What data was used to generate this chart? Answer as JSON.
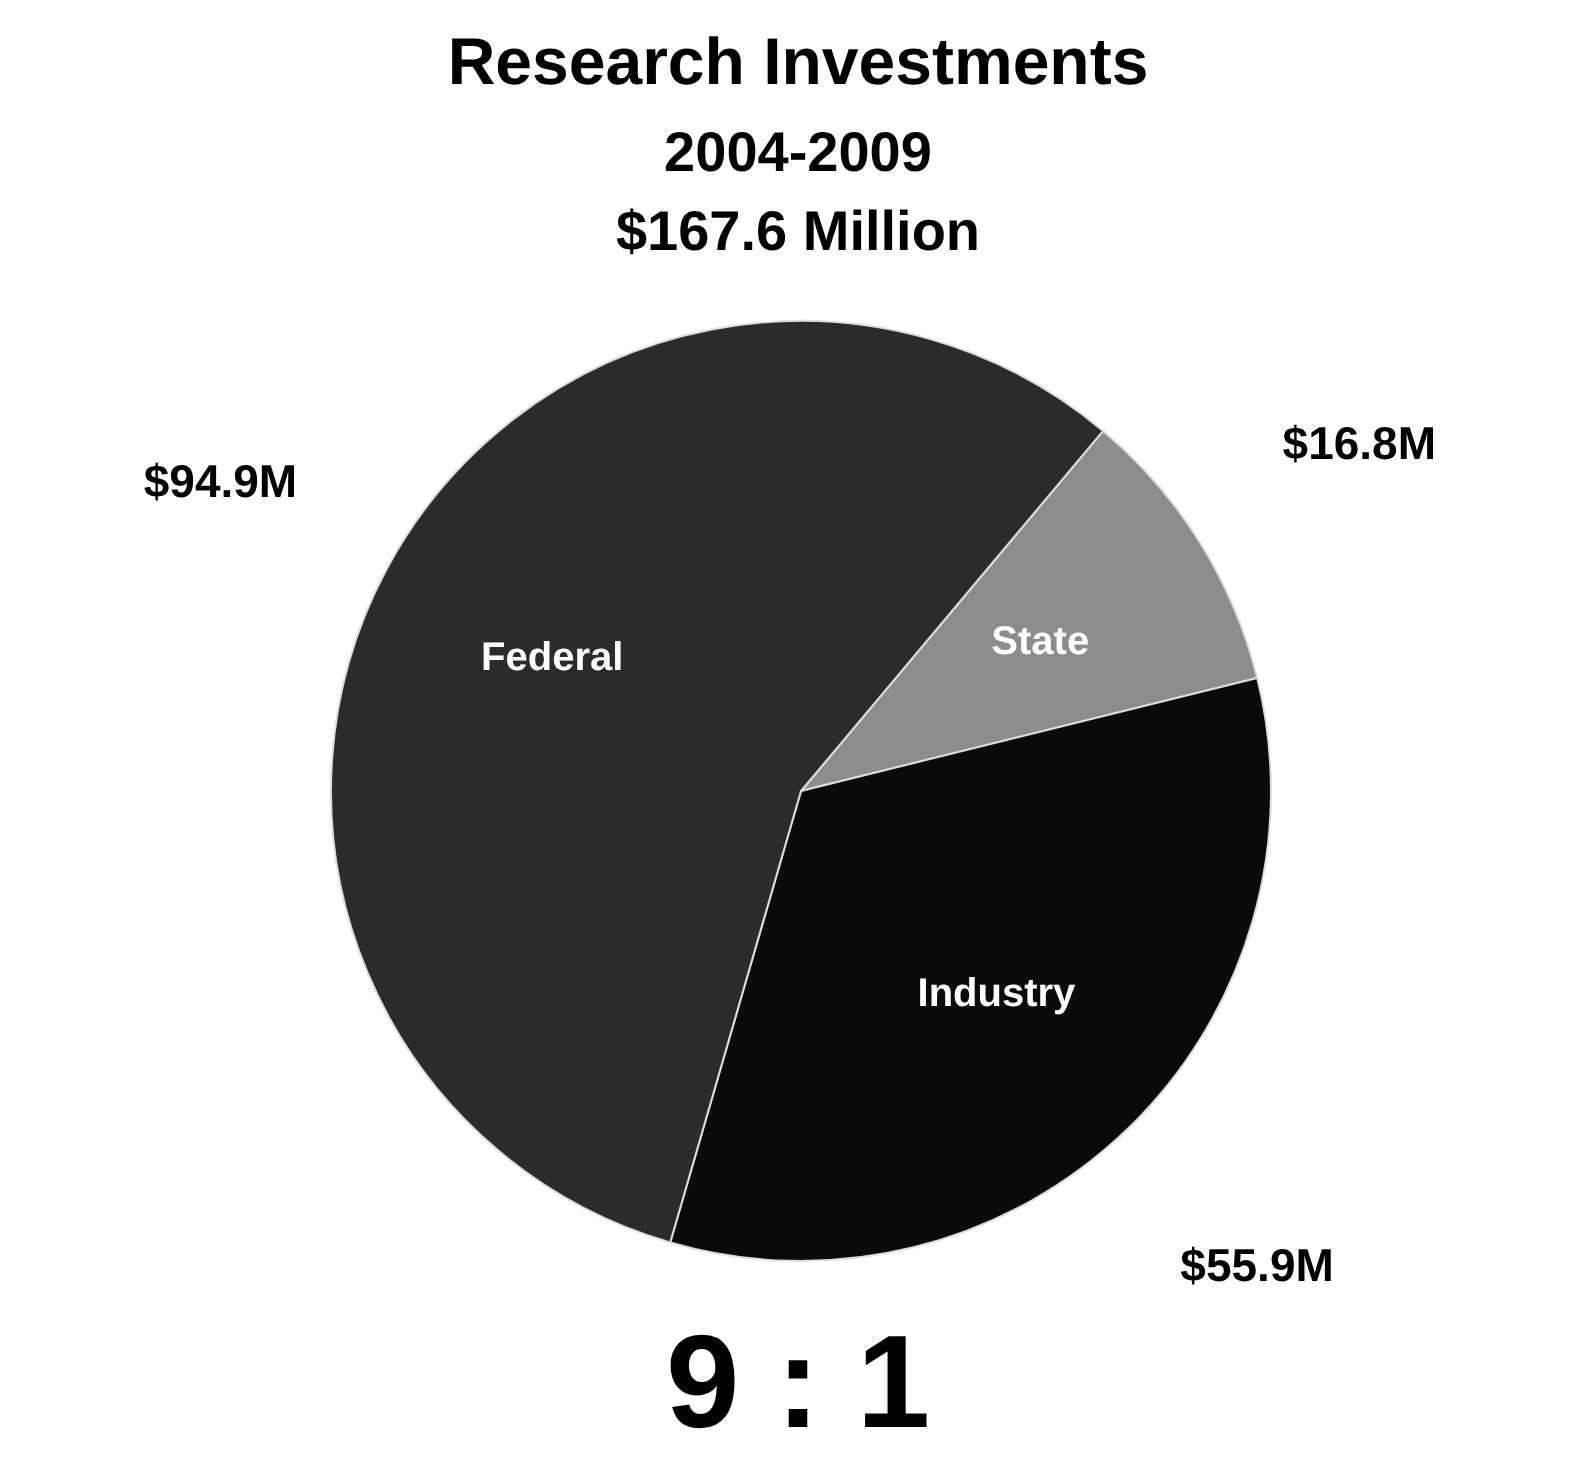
{
  "chart_data": {
    "type": "pie",
    "title": "Research Investments",
    "subtitle": "2004-2009\n$167.6 Million",
    "categories": [
      "State",
      "Industry",
      "Federal"
    ],
    "values": [
      16.8,
      55.9,
      94.9
    ],
    "colors": [
      "#8c8c8c",
      "#0a0a0a",
      "#2b2b2b"
    ],
    "value_labels": [
      "$16.8M",
      "$55.9M",
      "$94.9M"
    ],
    "annotations": [
      "9 : 1"
    ]
  }
}
